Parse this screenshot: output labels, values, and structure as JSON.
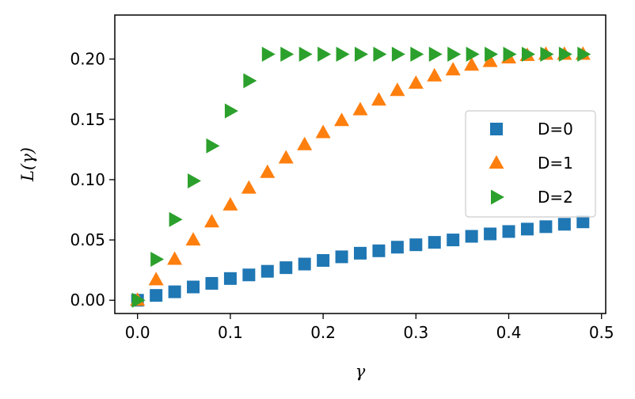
{
  "chart_data": {
    "type": "scatter",
    "xlabel": "γ",
    "ylabel": "L(γ)",
    "xlim": [
      -0.0245,
      0.5045
    ],
    "ylim": [
      -0.011,
      0.2365
    ],
    "xticks": [
      0.0,
      0.1,
      0.2,
      0.3,
      0.4,
      0.5
    ],
    "xtick_labels": [
      "0.0",
      "0.1",
      "0.2",
      "0.3",
      "0.4",
      "0.5"
    ],
    "yticks": [
      0.0,
      0.05,
      0.1,
      0.15,
      0.2
    ],
    "ytick_labels": [
      "0.00",
      "0.05",
      "0.10",
      "0.15",
      "0.20"
    ],
    "grid": false,
    "legend_position": "center-right",
    "x": [
      0.0,
      0.02,
      0.04,
      0.06,
      0.08,
      0.1,
      0.12,
      0.14,
      0.16,
      0.18,
      0.2,
      0.22,
      0.24,
      0.26,
      0.28,
      0.3,
      0.32,
      0.34,
      0.36,
      0.38,
      0.4,
      0.42,
      0.44,
      0.46,
      0.48
    ],
    "series": [
      {
        "name": "D=0",
        "marker": "square",
        "color": "#1f77b4",
        "values": [
          0.0,
          0.004,
          0.007,
          0.011,
          0.014,
          0.018,
          0.021,
          0.024,
          0.027,
          0.03,
          0.033,
          0.036,
          0.039,
          0.041,
          0.044,
          0.046,
          0.048,
          0.05,
          0.053,
          0.055,
          0.057,
          0.059,
          0.061,
          0.063,
          0.065
        ]
      },
      {
        "name": "D=1",
        "marker": "triangle-up",
        "color": "#ff7f0e",
        "values": [
          0.0,
          0.017,
          0.034,
          0.05,
          0.065,
          0.079,
          0.093,
          0.106,
          0.118,
          0.129,
          0.139,
          0.149,
          0.158,
          0.166,
          0.174,
          0.18,
          0.186,
          0.191,
          0.195,
          0.198,
          0.201,
          0.203,
          0.204,
          0.204,
          0.204
        ]
      },
      {
        "name": "D=2",
        "marker": "triangle-right",
        "color": "#2ca02c",
        "values": [
          0.0,
          0.034,
          0.067,
          0.099,
          0.128,
          0.157,
          0.182,
          0.204,
          0.204,
          0.204,
          0.204,
          0.204,
          0.204,
          0.204,
          0.204,
          0.204,
          0.204,
          0.204,
          0.204,
          0.204,
          0.204,
          0.204,
          0.204,
          0.204,
          0.204
        ]
      }
    ]
  }
}
